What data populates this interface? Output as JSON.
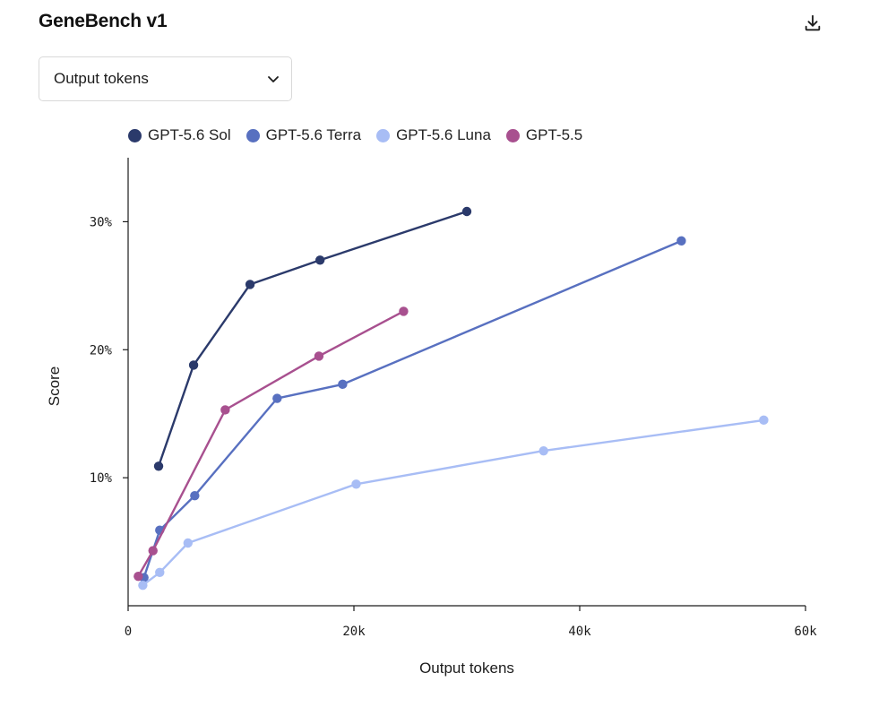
{
  "header": {
    "title": "GeneBench v1",
    "download_icon": "download-icon"
  },
  "metric_select": {
    "selected": "Output tokens",
    "icon": "chevron-down-icon"
  },
  "chart_data": {
    "type": "line",
    "xlabel": "Output tokens",
    "ylabel": "Score",
    "xlim": [
      0,
      60000
    ],
    "ylim": [
      0,
      35
    ],
    "x_ticks": [
      0,
      20000,
      40000,
      60000
    ],
    "x_tick_labels": [
      "0",
      "20k",
      "40k",
      "60k"
    ],
    "y_ticks": [
      10,
      20,
      30
    ],
    "y_tick_labels": [
      "10%",
      "20%",
      "30%"
    ],
    "grid": false,
    "legend_position": "top",
    "series": [
      {
        "name": "GPT-5.6 Sol",
        "color": "#2b3a6b",
        "x": [
          2700,
          5800,
          10800,
          17000,
          30000
        ],
        "y": [
          10.9,
          18.8,
          25.1,
          27.0,
          30.8
        ]
      },
      {
        "name": "GPT-5.6 Terra",
        "color": "#5870c0",
        "x": [
          1400,
          2800,
          5900,
          13200,
          19000,
          49000
        ],
        "y": [
          2.2,
          5.9,
          8.6,
          16.2,
          17.3,
          28.5
        ]
      },
      {
        "name": "GPT-5.6 Luna",
        "color": "#a8bdf5",
        "x": [
          1300,
          2800,
          5300,
          20200,
          36800,
          56300
        ],
        "y": [
          1.6,
          2.6,
          4.9,
          9.5,
          12.1,
          14.5
        ]
      },
      {
        "name": "GPT-5.5",
        "color": "#a8508f",
        "x": [
          900,
          2200,
          8600,
          16900,
          24400
        ],
        "y": [
          2.3,
          4.3,
          15.3,
          19.5,
          23.0
        ]
      }
    ]
  }
}
